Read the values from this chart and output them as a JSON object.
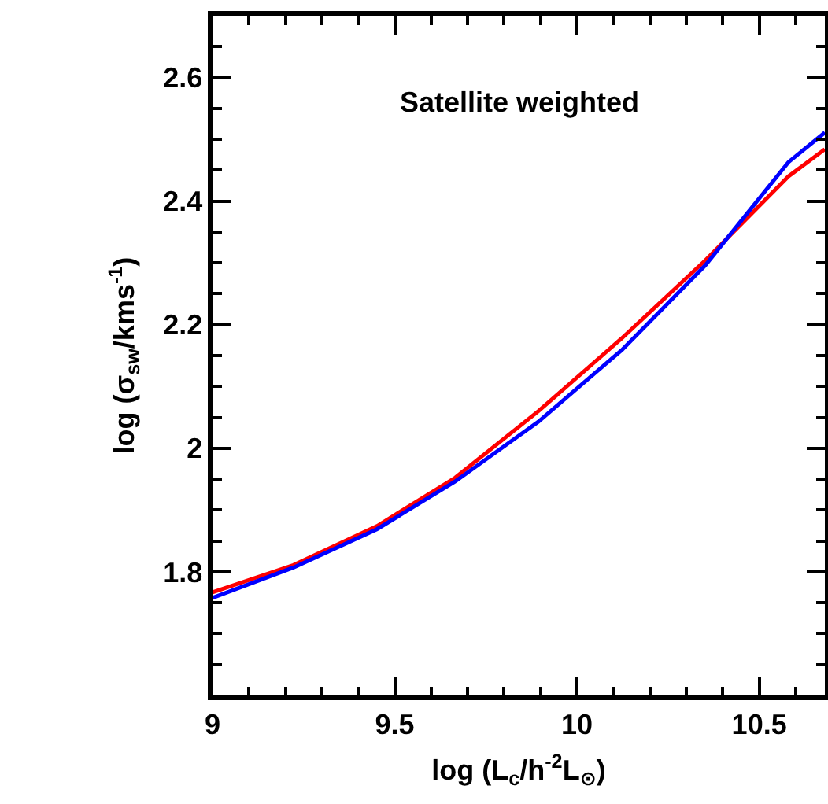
{
  "chart_data": {
    "type": "line",
    "xlabel": "log (L$_{c}$/h$^{-2}$L$_{⊙}$)",
    "ylabel": "log (σ$_{sw}$/kms$^{-1}$)",
    "annotations": [
      "Satellite weighted"
    ],
    "x": [
      9,
      9.222,
      9.451,
      9.665,
      9.894,
      10.123,
      10.352,
      10.58,
      10.68
    ],
    "series": [
      {
        "color": "#ff0000",
        "values": [
          1.767,
          1.811,
          1.874,
          1.952,
          2.06,
          2.178,
          2.304,
          2.44,
          2.484
        ]
      },
      {
        "color": "#0000ff",
        "values": [
          1.758,
          1.807,
          1.869,
          1.946,
          2.043,
          2.159,
          2.296,
          2.463,
          2.511
        ]
      }
    ],
    "xlim": [
      9,
      10.68
    ],
    "ylim": [
      1.6,
      2.7
    ],
    "xticks": [
      9,
      9.5,
      10,
      10.5
    ],
    "yticks": [
      1.8,
      2,
      2.2,
      2.4,
      2.6
    ],
    "grid": false,
    "marker": "none",
    "line_style": "solid"
  }
}
